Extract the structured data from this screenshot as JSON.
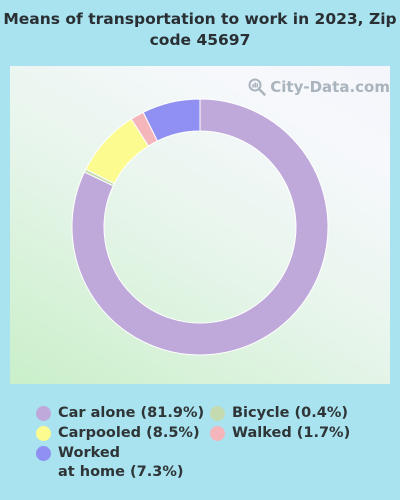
{
  "title": "Means of transportation to work in 2023, Zip code 45697",
  "watermark": "City-Data.com",
  "chart_data": {
    "type": "pie",
    "donut": true,
    "title": "Means of transportation to work in 2023, Zip code 45697",
    "slices": [
      {
        "name": "Car alone",
        "value": 81.9,
        "color": "#bfa8da",
        "label": "Car alone (81.9%)"
      },
      {
        "name": "Bicycle",
        "value": 0.4,
        "color": "#c4dbb0",
        "label": "Bicycle (0.4%)"
      },
      {
        "name": "Carpooled",
        "value": 8.5,
        "color": "#fbfb8f",
        "label": "Carpooled (8.5%)"
      },
      {
        "name": "Walked",
        "value": 1.7,
        "color": "#f4b5bb",
        "label": "Walked (1.7%)"
      },
      {
        "name": "Worked at home",
        "value": 7.3,
        "color": "#9090f2",
        "label": "Worked\nat home (7.3%)"
      }
    ],
    "start_angle_deg": 0,
    "direction": "clockwise",
    "legend_position": "bottom"
  }
}
